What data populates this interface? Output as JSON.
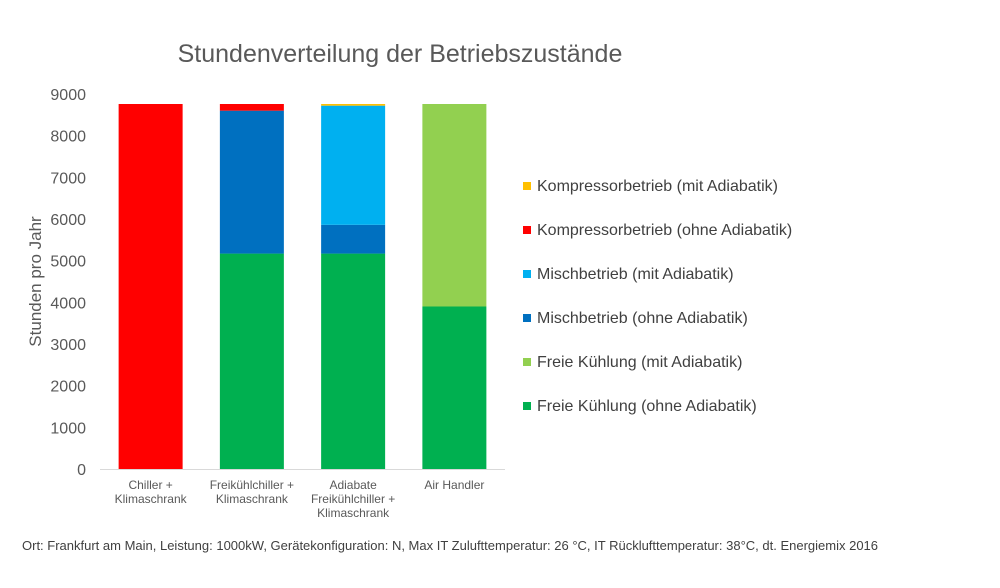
{
  "chart_data": {
    "type": "bar",
    "stacked": true,
    "title": "Stundenverteilung der Betriebszustände",
    "ylabel": "Stunden pro Jahr",
    "xlabel": "",
    "ylim": [
      0,
      9000
    ],
    "yticks": [
      0,
      1000,
      2000,
      3000,
      4000,
      5000,
      6000,
      7000,
      8000,
      9000
    ],
    "grid": false,
    "legend_position": "right",
    "categories": [
      [
        "Chiller +",
        "Klimaschrank"
      ],
      [
        "Freikühlchiller +",
        "Klimaschrank"
      ],
      [
        "Adiabate",
        "Freikühlchiller +",
        "Klimaschrank"
      ],
      [
        "Air Handler"
      ]
    ],
    "series": [
      {
        "name": "Freie Kühlung (ohne Adiabatik)",
        "color": "#00B050",
        "values": [
          0,
          5170,
          5170,
          3900
        ]
      },
      {
        "name": "Freie Kühlung (mit Adiabatik)",
        "color": "#92D050",
        "values": [
          0,
          0,
          0,
          4860
        ]
      },
      {
        "name": "Mischbetrieb (ohne Adiabatik)",
        "color": "#0070C0",
        "values": [
          0,
          3430,
          690,
          0
        ]
      },
      {
        "name": "Mischbetrieb (mit Adiabatik)",
        "color": "#00B0F0",
        "values": [
          0,
          0,
          2860,
          0
        ]
      },
      {
        "name": "Kompressorbetrieb (ohne Adiabatik)",
        "color": "#FF0000",
        "values": [
          8760,
          160,
          0,
          0
        ]
      },
      {
        "name": "Kompressorbetrieb (mit Adiabatik)",
        "color": "#FFC000",
        "values": [
          0,
          0,
          40,
          0
        ]
      }
    ]
  },
  "footnote": "Ort: Frankfurt am Main, Leistung: 1000kW, Gerätekonfiguration: N, Max IT Zulufttemperatur: 26 °C, IT Rücklufttemperatur: 38°C, dt. Energiemix 2016"
}
